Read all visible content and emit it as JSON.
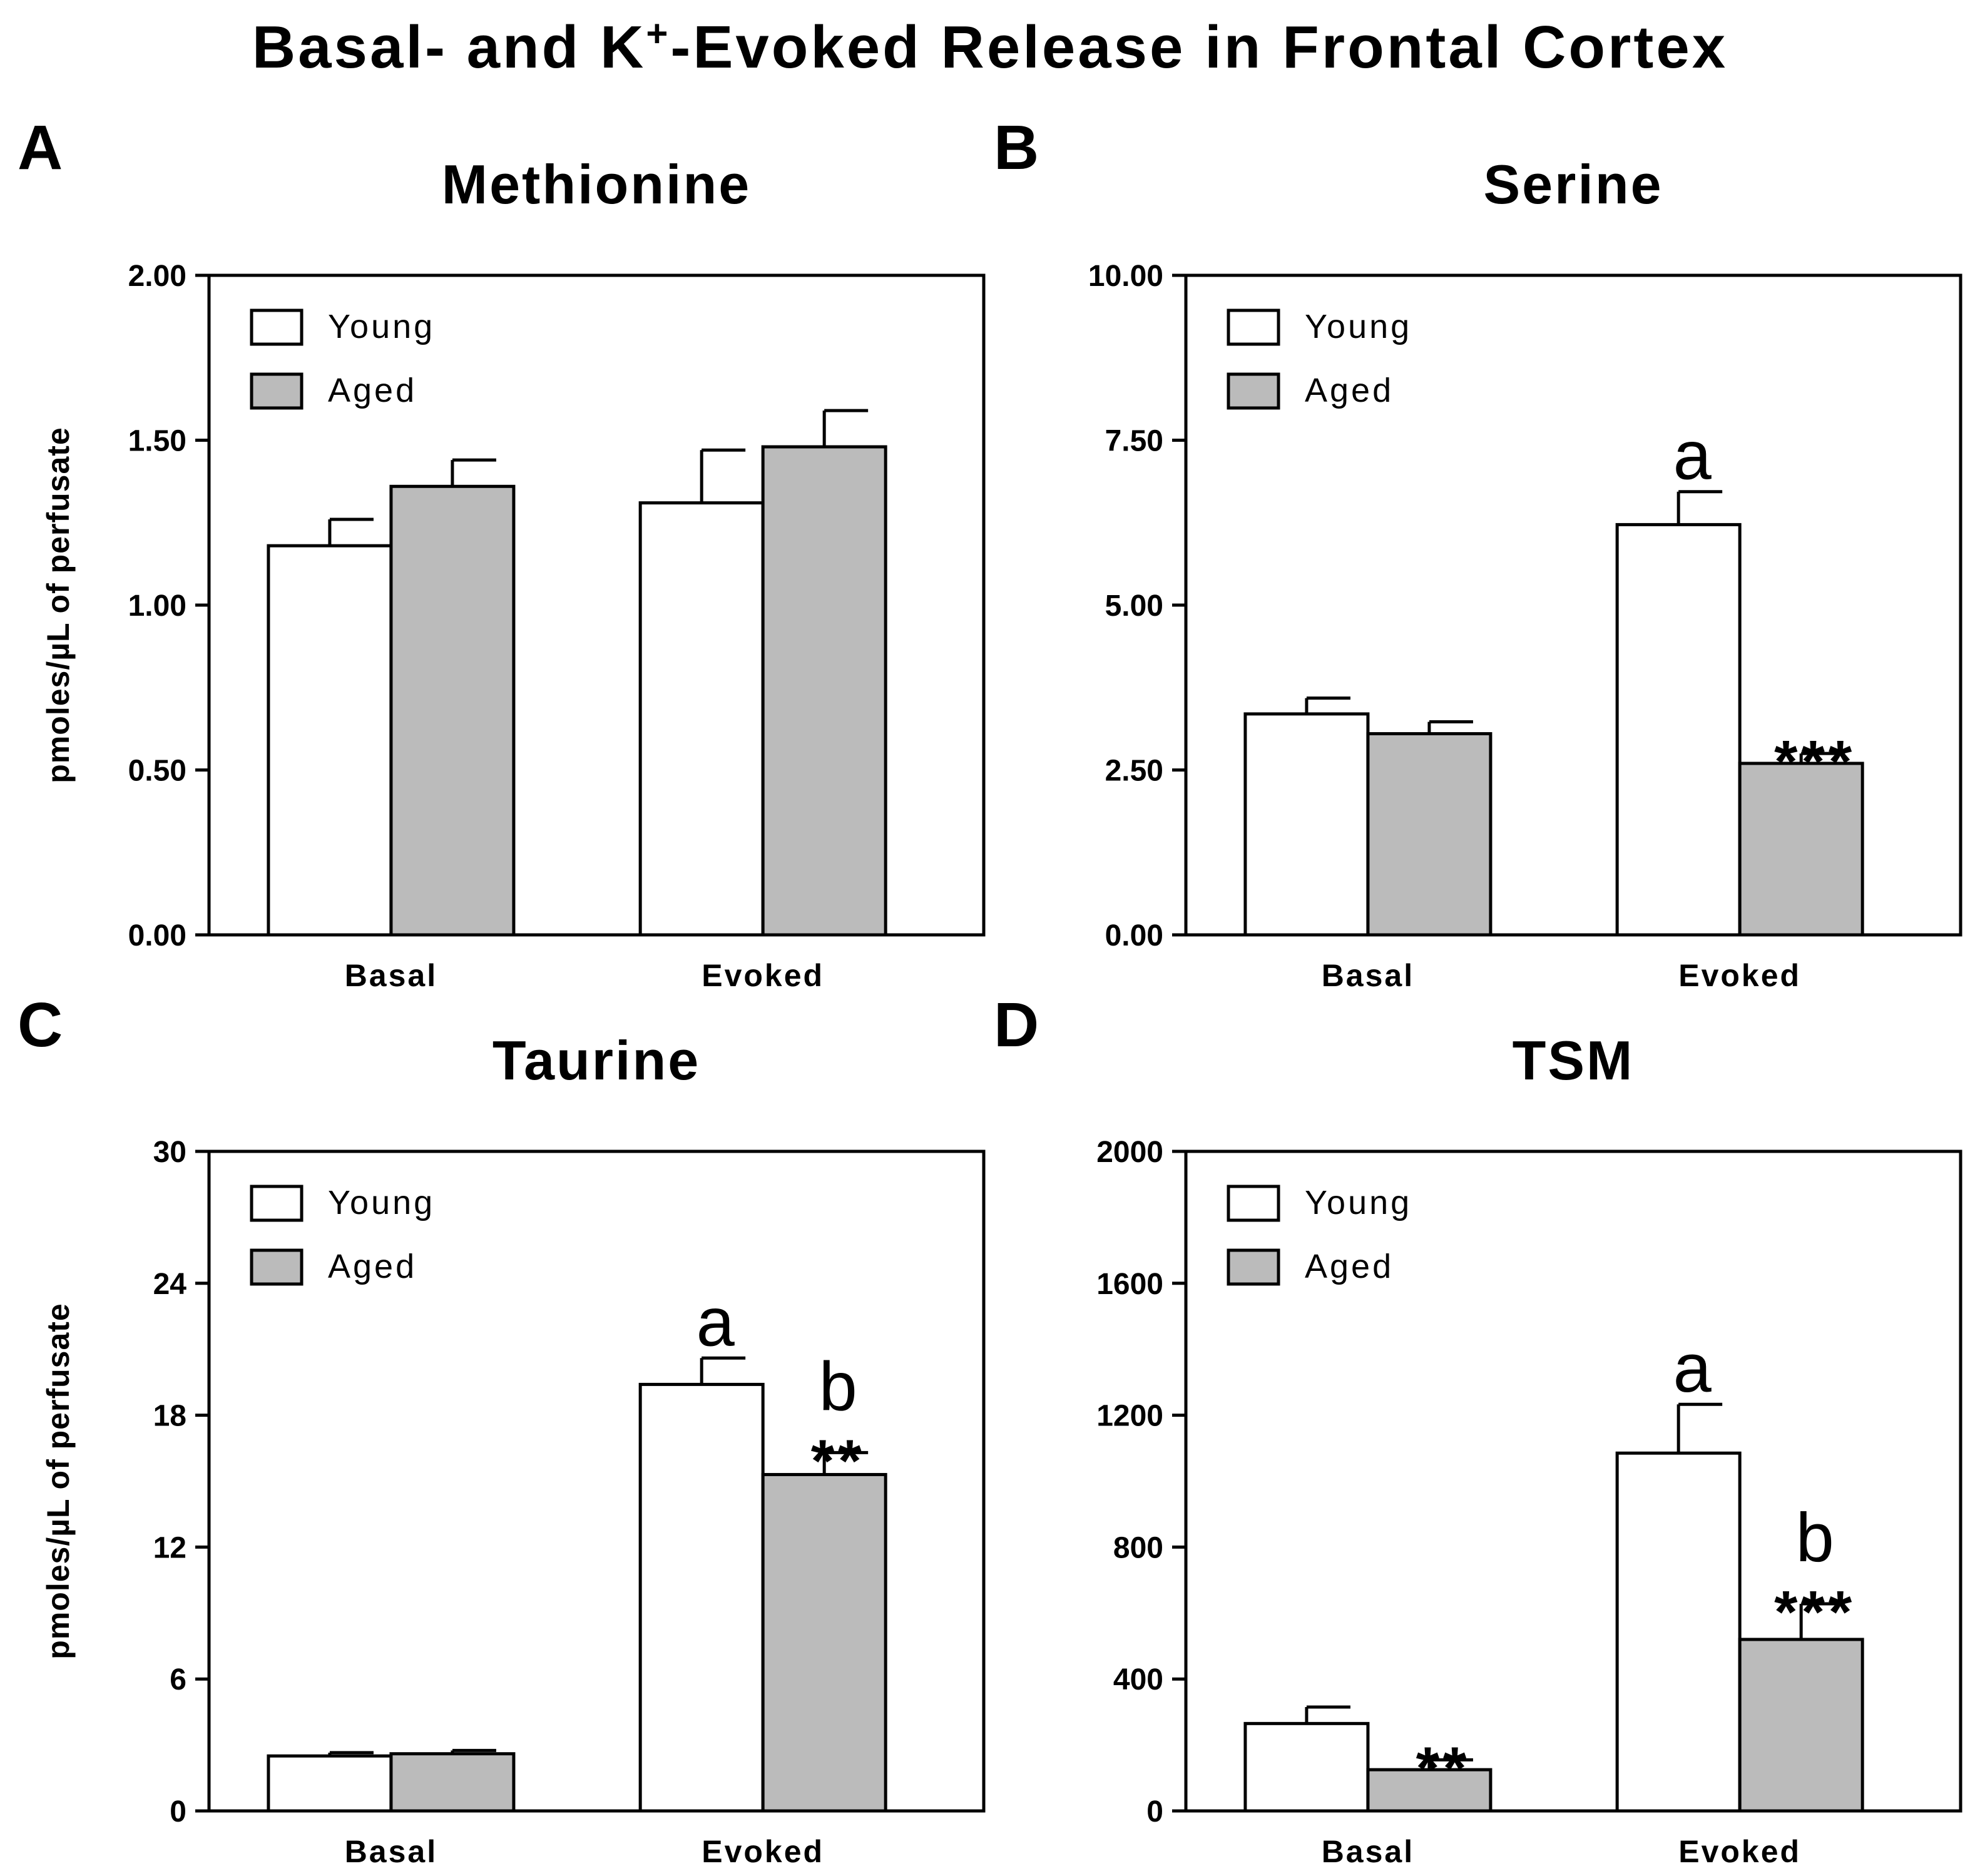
{
  "figure_title_main": "Basal- and K",
  "figure_title_sup": "+",
  "figure_title_rest": "-Evoked Release in Frontal Cortex",
  "colors": {
    "young": "#ffffff",
    "aged": "#bbbbbb",
    "stroke": "#000000"
  },
  "chart_data": [
    {
      "panel": "A",
      "type": "bar",
      "title": "Methionine",
      "ylabel": "pmoles/µL of perfusate",
      "ylim": [
        0,
        2.0
      ],
      "yticks": [
        "0.00",
        "0.50",
        "1.00",
        "1.50",
        "2.00"
      ],
      "categories": [
        "Basal",
        "Evoked"
      ],
      "legend": [
        "Young",
        "Aged"
      ],
      "legend_position": "top-left",
      "series": [
        {
          "name": "Young",
          "values": [
            1.18,
            1.31
          ],
          "errors": [
            0.08,
            0.16
          ]
        },
        {
          "name": "Aged",
          "values": [
            1.36,
            1.48
          ],
          "errors": [
            0.08,
            0.11
          ]
        }
      ],
      "annotations": []
    },
    {
      "panel": "B",
      "type": "bar",
      "title": "Serine",
      "ylabel": "",
      "ylim": [
        0,
        10.0
      ],
      "yticks": [
        "0.00",
        "2.50",
        "5.00",
        "7.50",
        "10.00"
      ],
      "categories": [
        "Basal",
        "Evoked"
      ],
      "legend": [
        "Young",
        "Aged"
      ],
      "legend_position": "top-left",
      "series": [
        {
          "name": "Young",
          "values": [
            3.35,
            6.22
          ],
          "errors": [
            0.24,
            0.5
          ]
        },
        {
          "name": "Aged",
          "values": [
            3.05,
            2.6
          ],
          "errors": [
            0.18,
            0.15
          ]
        }
      ],
      "annotations": [
        {
          "series": "Young",
          "category": "Evoked",
          "letter": "a",
          "stars": ""
        },
        {
          "series": "Aged",
          "category": "Evoked",
          "letter": "",
          "stars": "***"
        }
      ]
    },
    {
      "panel": "C",
      "type": "bar",
      "title": "Taurine",
      "ylabel": "pmoles/µL of perfusate",
      "ylim": [
        0,
        30
      ],
      "yticks": [
        "0",
        "6",
        "12",
        "18",
        "24",
        "30"
      ],
      "categories": [
        "Basal",
        "Evoked"
      ],
      "legend": [
        "Young",
        "Aged"
      ],
      "legend_position": "top-left",
      "series": [
        {
          "name": "Young",
          "values": [
            2.5,
            19.4
          ],
          "errors": [
            0.15,
            1.2
          ]
        },
        {
          "name": "Aged",
          "values": [
            2.6,
            15.3
          ],
          "errors": [
            0.15,
            1.0
          ]
        }
      ],
      "annotations": [
        {
          "series": "Young",
          "category": "Evoked",
          "letter": "a",
          "stars": ""
        },
        {
          "series": "Aged",
          "category": "Evoked",
          "letter": "b",
          "stars": "**"
        }
      ]
    },
    {
      "panel": "D",
      "type": "bar",
      "title": "TSM",
      "ylabel": "",
      "ylim": [
        0,
        2000
      ],
      "yticks": [
        "0",
        "400",
        "800",
        "1200",
        "1600",
        "2000"
      ],
      "categories": [
        "Basal",
        "Evoked"
      ],
      "legend": [
        "Young",
        "Aged"
      ],
      "legend_position": "top-left",
      "series": [
        {
          "name": "Young",
          "values": [
            265,
            1085
          ],
          "errors": [
            50,
            148
          ]
        },
        {
          "name": "Aged",
          "values": [
            125,
            520
          ],
          "errors": [
            30,
            108
          ]
        }
      ],
      "annotations": [
        {
          "series": "Young",
          "category": "Evoked",
          "letter": "a",
          "stars": ""
        },
        {
          "series": "Aged",
          "category": "Basal",
          "letter": "",
          "stars": "**"
        },
        {
          "series": "Aged",
          "category": "Evoked",
          "letter": "b",
          "stars": "***"
        }
      ]
    }
  ]
}
